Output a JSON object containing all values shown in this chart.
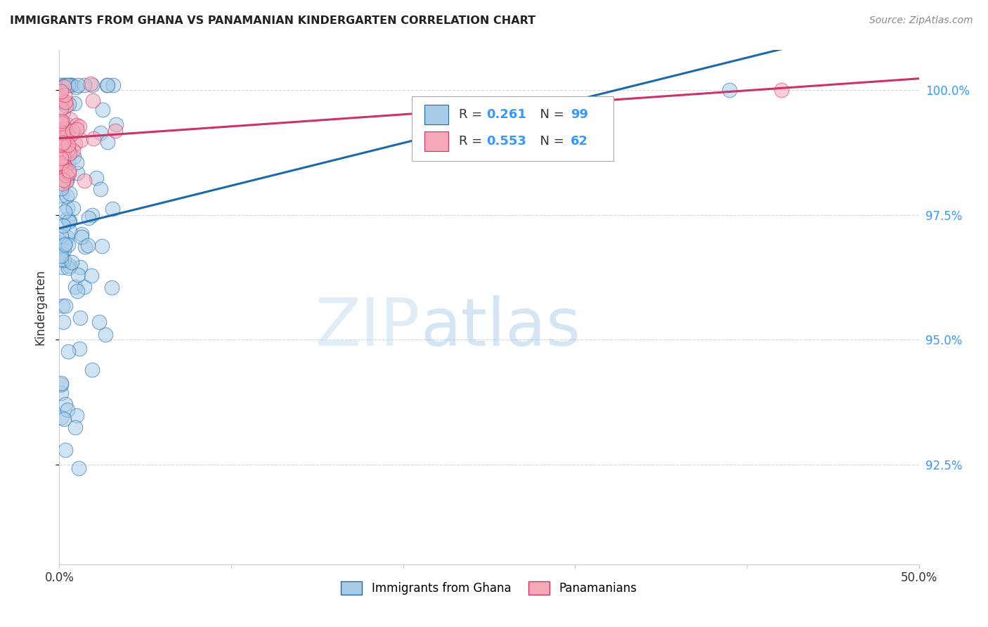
{
  "title": "IMMIGRANTS FROM GHANA VS PANAMANIAN KINDERGARTEN CORRELATION CHART",
  "source": "Source: ZipAtlas.com",
  "ylabel": "Kindergarten",
  "legend_label1": "Immigrants from Ghana",
  "legend_label2": "Panamanians",
  "r1": "0.261",
  "n1": "99",
  "r2": "0.553",
  "n2": "62",
  "color_blue": "#a8cce8",
  "color_pink": "#f4a8b8",
  "line_blue": "#1a6aab",
  "line_pink": "#cc3366",
  "watermark_zip": "ZIP",
  "watermark_atlas": "atlas",
  "xlim": [
    0.0,
    0.5
  ],
  "ylim": [
    0.905,
    1.008
  ],
  "ytick_values": [
    0.925,
    0.95,
    0.975,
    1.0
  ],
  "ytick_labels": [
    "92.5%",
    "95.0%",
    "97.5%",
    "100.0%"
  ],
  "xtick_values": [
    0.0,
    0.1,
    0.2,
    0.3,
    0.4,
    0.5
  ],
  "xtick_labels": [
    "0.0%",
    "",
    "",
    "",
    "",
    "50.0%"
  ]
}
